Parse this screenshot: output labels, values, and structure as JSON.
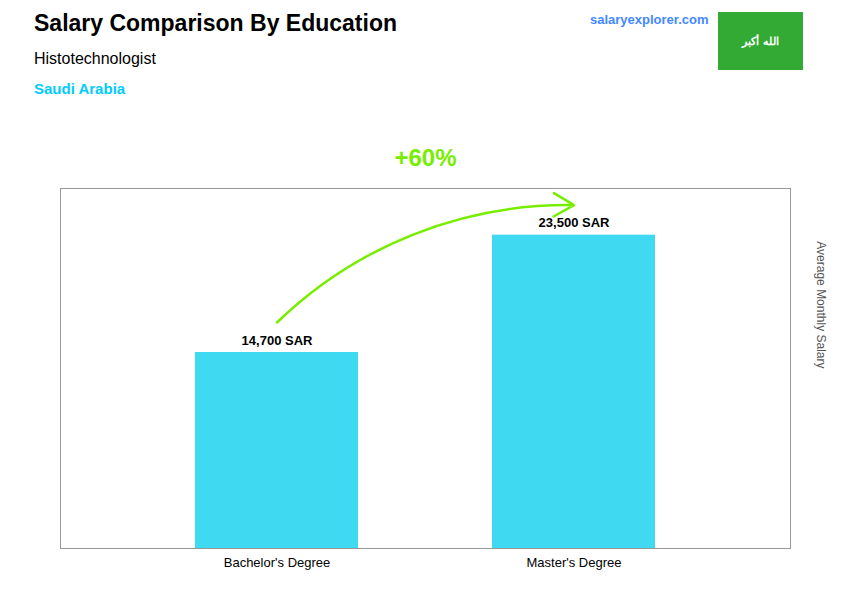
{
  "chart_data": {
    "type": "bar",
    "title": "Salary Comparison By Education",
    "subtitle": "Histotechnologist",
    "ylabel": "Average Monthly Salary",
    "categories": [
      "Bachelor's Degree",
      "Master's Degree"
    ],
    "values": [
      14700,
      23500
    ],
    "value_labels": [
      "14,700 SAR",
      "23,500 SAR"
    ],
    "data_labels": true,
    "color": "#00ccee",
    "ylim": [
      0,
      27000
    ],
    "tick_labels": "x",
    "grid": false,
    "annotations": [
      {
        "text": "+60%",
        "color": "#77ee00"
      },
      {
        "text": "Saudi Arabia",
        "color": "#00ccff"
      },
      {
        "text": "salaryexplorer.com",
        "color": "#4488ff"
      },
      {
        "text": "الله أكبر",
        "color": "#ffffff",
        "background": "#33aa33"
      }
    ]
  }
}
